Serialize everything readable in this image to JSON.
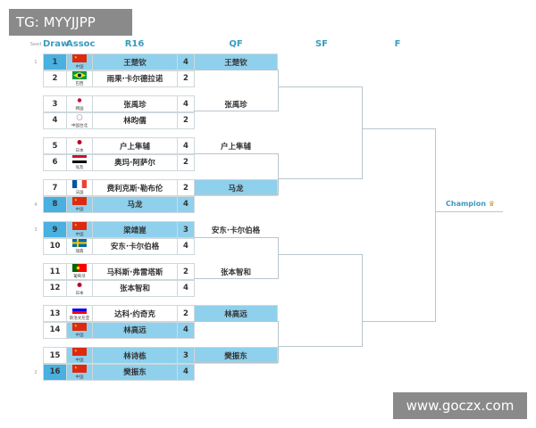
{
  "watermark_top": "TG: MYYJJPP",
  "watermark_bottom": "www.goczx.com",
  "headers": {
    "seed": "Seed",
    "draw": "Draw",
    "assoc": "Assoc",
    "r16": "R16",
    "qf": "QF",
    "sf": "SF",
    "f": "F"
  },
  "colors": {
    "header": "#3a9bbf",
    "winner_fill": "#8fd0ec",
    "seeded_draw": "#49b0df"
  },
  "r16": [
    {
      "seed": "1",
      "draw": "1",
      "flag": "CN",
      "assoc": "中国",
      "name": "王楚钦",
      "score": "4",
      "winner": true
    },
    {
      "seed": "",
      "draw": "2",
      "flag": "BR",
      "assoc": "巴西",
      "name": "雨果·卡尔德拉诺",
      "score": "2",
      "winner": false
    },
    {
      "seed": "",
      "draw": "3",
      "flag": "KR",
      "assoc": "韩国",
      "name": "张禹珍",
      "score": "4",
      "winner": false
    },
    {
      "seed": "",
      "draw": "4",
      "flag": "TPE",
      "assoc": "中国台北",
      "name": "林昀儒",
      "score": "2",
      "winner": false
    },
    {
      "seed": "",
      "draw": "5",
      "flag": "JP",
      "assoc": "日本",
      "name": "户上隼辅",
      "score": "4",
      "winner": false
    },
    {
      "seed": "",
      "draw": "6",
      "flag": "EG",
      "assoc": "埃及",
      "name": "奥玛·阿萨尔",
      "score": "2",
      "winner": false
    },
    {
      "seed": "",
      "draw": "7",
      "flag": "FR",
      "assoc": "法国",
      "name": "费利克斯·勒布伦",
      "score": "2",
      "winner": false
    },
    {
      "seed": "4",
      "draw": "8",
      "flag": "CN",
      "assoc": "中国",
      "name": "马龙",
      "score": "4",
      "winner": true
    },
    {
      "seed": "3",
      "draw": "9",
      "flag": "CN",
      "assoc": "中国",
      "name": "梁靖崑",
      "score": "3",
      "winner": true
    },
    {
      "seed": "",
      "draw": "10",
      "flag": "SE",
      "assoc": "瑞典",
      "name": "安东·卡尔伯格",
      "score": "4",
      "winner": false
    },
    {
      "seed": "",
      "draw": "11",
      "flag": "PT",
      "assoc": "葡萄牙",
      "name": "马科斯·弗雷塔斯",
      "score": "2",
      "winner": false
    },
    {
      "seed": "",
      "draw": "12",
      "flag": "JP",
      "assoc": "日本",
      "name": "张本智和",
      "score": "4",
      "winner": false
    },
    {
      "seed": "",
      "draw": "13",
      "flag": "SI",
      "assoc": "斯洛文尼亚",
      "name": "达科·约奇克",
      "score": "2",
      "winner": false
    },
    {
      "seed": "",
      "draw": "14",
      "flag": "CN",
      "assoc": "中国",
      "name": "林高远",
      "score": "4",
      "winner": true
    },
    {
      "seed": "",
      "draw": "15",
      "flag": "CN",
      "assoc": "中国",
      "name": "林诗栋",
      "score": "3",
      "winner": true
    },
    {
      "seed": "2",
      "draw": "16",
      "flag": "CN",
      "assoc": "中国",
      "name": "樊振东",
      "score": "4",
      "winner": true
    }
  ],
  "qf": [
    {
      "name": "王楚钦",
      "winner": true
    },
    {
      "name": "张禹珍",
      "winner": false
    },
    {
      "name": "户上隼辅",
      "winner": false
    },
    {
      "name": "马龙",
      "winner": true
    },
    {
      "name": "安东·卡尔伯格",
      "winner": false
    },
    {
      "name": "张本智和",
      "winner": false
    },
    {
      "name": "林高远",
      "winner": true
    },
    {
      "name": "樊振东",
      "winner": true
    }
  ],
  "champion": {
    "label": "Champion",
    "icon": "trophy-icon"
  }
}
